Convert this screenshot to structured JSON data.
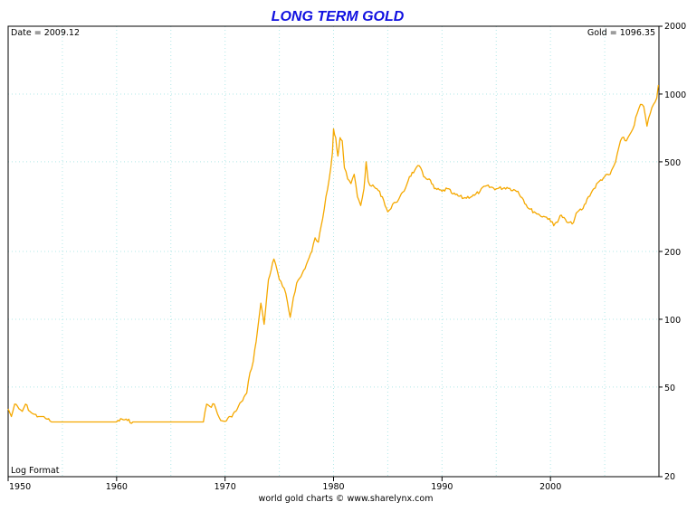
{
  "chart_data": {
    "type": "line",
    "title": "LONG TERM GOLD",
    "header_left": "Date = 2009.12",
    "header_right": "Gold = 1096.35",
    "corner_label": "Log Format",
    "footer": "world gold charts © www.sharelynx.com",
    "x_ticks": [
      "1950",
      "1960",
      "1970",
      "1980",
      "1990",
      "2000"
    ],
    "y_ticks": [
      "20",
      "50",
      "100",
      "200",
      "500",
      "1000",
      "2000"
    ],
    "x_range": [
      1950,
      2010
    ],
    "y_range": [
      20,
      2000
    ],
    "y_scale": "log",
    "grid": true,
    "line_color": "#f5a800",
    "grid_color": "#b0e8e8",
    "series": [
      {
        "x": [
          1950,
          1950.3,
          1950.6,
          1951,
          1951.3,
          1951.6,
          1952,
          1952.3,
          1952.8,
          1953.3,
          1953.6,
          1954,
          1956,
          1958,
          1960,
          1960.5,
          1961,
          1961.5,
          1962,
          1964,
          1966,
          1967,
          1968,
          1968.3,
          1968.6,
          1969,
          1969.3,
          1969.6,
          1970,
          1970.5,
          1971,
          1971.5,
          1972,
          1972.3,
          1972.6,
          1973,
          1973.3,
          1973.6,
          1974,
          1974.5,
          1974.8,
          1975,
          1975.3,
          1975.6,
          1976,
          1976.3,
          1976.6,
          1977,
          1977.5,
          1978,
          1978.3,
          1978.6,
          1979,
          1979.3,
          1979.6,
          1979.9,
          1980,
          1980.2,
          1980.4,
          1980.6,
          1980.8,
          1981,
          1981.3,
          1981.6,
          1981.9,
          1982.2,
          1982.5,
          1982.8,
          1983,
          1983.2,
          1983.5,
          1984,
          1984.5,
          1985,
          1985.3,
          1985.6,
          1986,
          1986.5,
          1987,
          1987.5,
          1987.9,
          1988.3,
          1988.8,
          1989.3,
          1990,
          1990.5,
          1991,
          1992,
          1993,
          1993.5,
          1994,
          1995,
          1996,
          1997,
          1997.5,
          1998,
          1998.5,
          1999,
          1999.5,
          1999.9,
          2000.3,
          2001,
          2001.5,
          2002,
          2002.5,
          2003,
          2003.5,
          2004,
          2004.5,
          2005,
          2005.5,
          2006,
          2006.3,
          2006.6,
          2007,
          2007.3,
          2007.6,
          2008,
          2008.3,
          2008.6,
          2008.9,
          2009.2,
          2009.5,
          2009.8,
          2009.95
        ],
        "y": [
          40,
          37,
          42,
          40,
          39,
          42,
          39,
          38,
          37,
          37,
          36,
          35,
          35,
          35,
          35,
          36,
          35.5,
          35,
          35,
          35,
          35,
          35,
          35,
          42,
          41,
          42,
          38,
          35.5,
          35.2,
          37,
          39,
          43,
          47,
          58,
          65,
          90,
          118,
          95,
          150,
          185,
          165,
          150,
          140,
          130,
          102,
          125,
          145,
          155,
          175,
          200,
          230,
          220,
          280,
          350,
          420,
          550,
          700,
          640,
          530,
          640,
          620,
          470,
          420,
          400,
          440,
          350,
          320,
          380,
          500,
          410,
          390,
          380,
          350,
          300,
          310,
          330,
          340,
          370,
          430,
          460,
          480,
          430,
          420,
          380,
          370,
          380,
          360,
          345,
          355,
          370,
          390,
          380,
          385,
          370,
          340,
          310,
          300,
          290,
          285,
          280,
          260,
          290,
          270,
          265,
          300,
          310,
          350,
          380,
          410,
          430,
          440,
          500,
          580,
          640,
          620,
          660,
          700,
          820,
          900,
          880,
          720,
          820,
          900,
          960,
          1096
        ]
      }
    ]
  }
}
